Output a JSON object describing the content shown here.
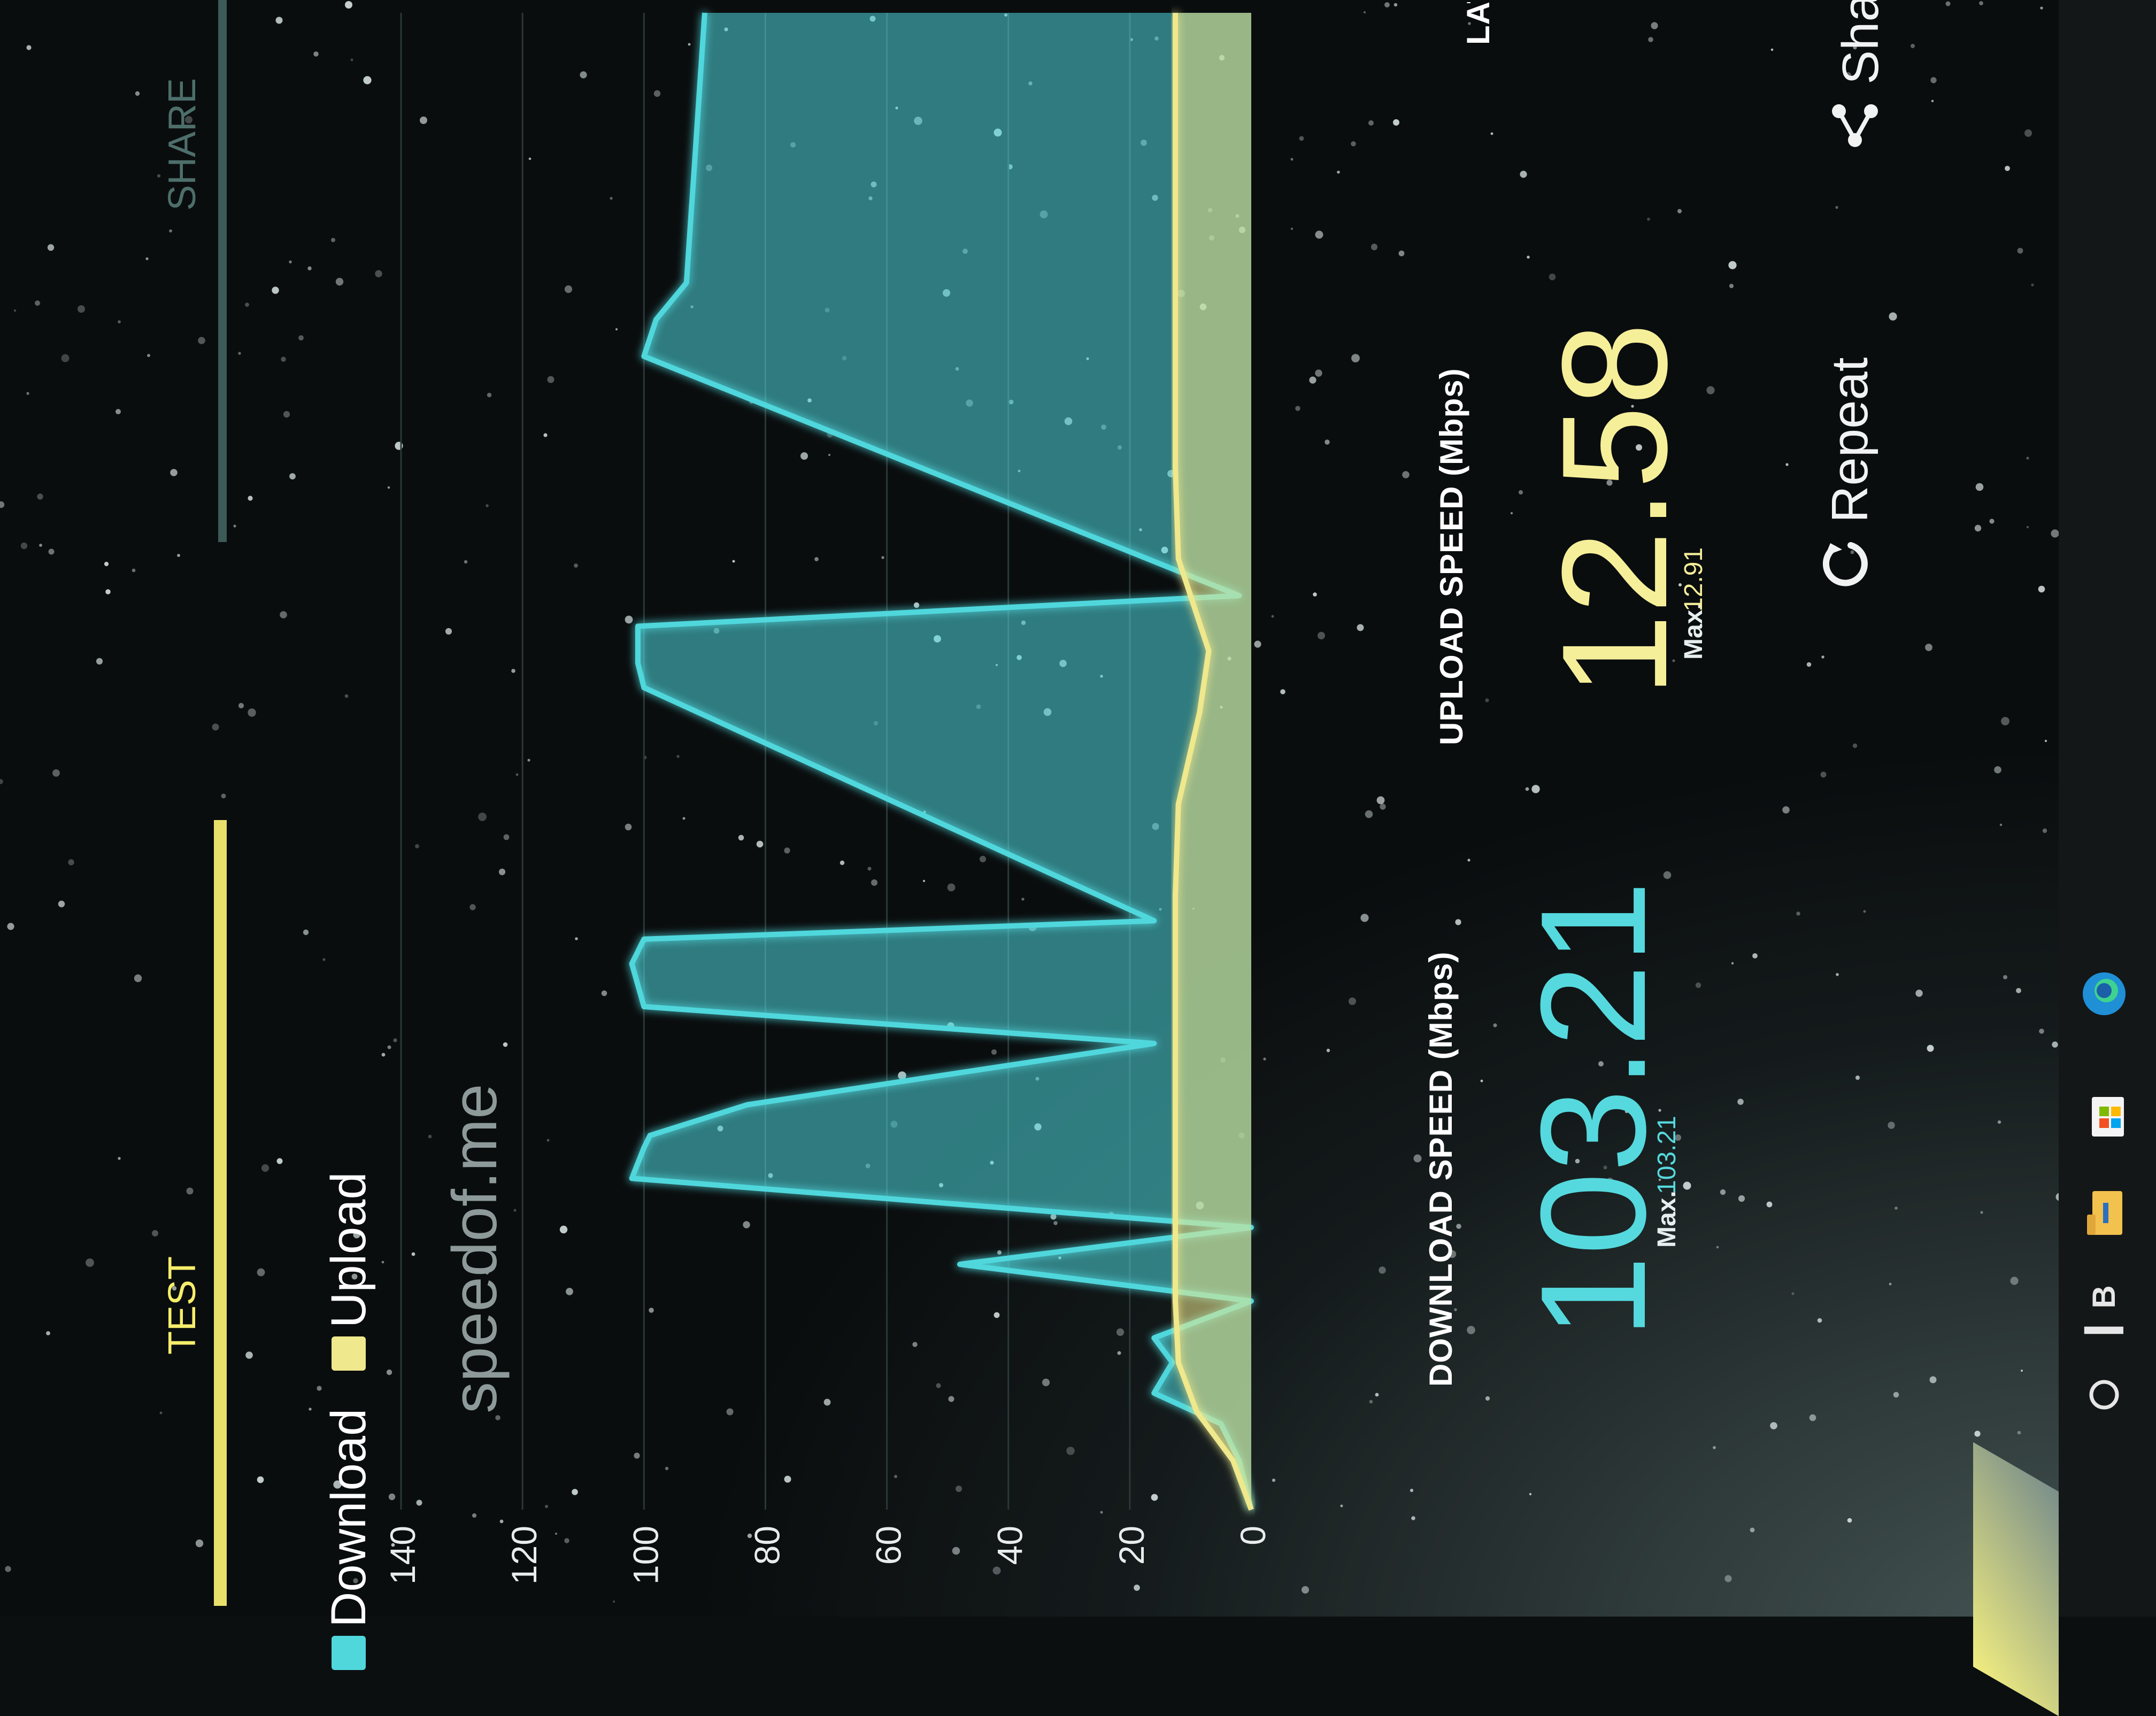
{
  "tabs": [
    {
      "label": "TEST",
      "active": true
    },
    {
      "label": "SHARE",
      "active": false
    }
  ],
  "legend": [
    {
      "label": "Download",
      "color": "#4fd7dc"
    },
    {
      "label": "Upload",
      "color": "#efe88c"
    }
  ],
  "brand": "speedof.me",
  "chart_data": {
    "type": "area",
    "y_axis_label": "Mbps",
    "ylim": [
      0,
      140
    ],
    "yticks": [
      0,
      20,
      40,
      60,
      80,
      100,
      120,
      140
    ],
    "grid": true,
    "series": [
      {
        "name": "Download",
        "color": "#4fd7dc",
        "x": [
          0,
          0.8,
          1.4,
          1.9,
          2.4,
          2.8,
          3.4,
          4.0,
          4.6,
          5.4,
          5.9,
          6.1,
          6.6,
          7.6,
          8.2,
          8.9,
          9.3,
          9.6,
          13.4,
          13.8,
          14.4,
          14.9,
          18.8,
          19.4,
          20.0,
          24.4
        ],
        "values": [
          0,
          2,
          5,
          16,
          13,
          16,
          0,
          48,
          0,
          102,
          100,
          99,
          83,
          16,
          100,
          102,
          100,
          16,
          100,
          101,
          101,
          2,
          100,
          98,
          93,
          90
        ]
      },
      {
        "name": "Upload",
        "color": "#efe88c",
        "x": [
          0,
          0.8,
          1.6,
          2.4,
          3.4,
          5.0,
          7.0,
          10.0,
          11.5,
          13.0,
          14.0,
          15.5,
          17.0,
          19.5,
          24.4
        ],
        "values": [
          0,
          3,
          9,
          12,
          12.5,
          12.5,
          12.5,
          12.5,
          12,
          8.5,
          7,
          12,
          12.5,
          12.5,
          12.5
        ]
      }
    ]
  },
  "results": {
    "download": {
      "label": "DOWNLOAD SPEED (Mbps)",
      "value": "103.21",
      "max_label": "Max.",
      "max_value": "103.21"
    },
    "upload": {
      "label": "UPLOAD SPEED (Mbps)",
      "value": "12.58",
      "max_label": "Max.",
      "max_value": "12.91"
    },
    "latency": {
      "label": "LATE"
    }
  },
  "actions": {
    "repeat": {
      "label": "Repeat",
      "icon": "refresh-icon"
    },
    "share": {
      "label": "Share",
      "icon": "share-icon"
    }
  },
  "taskbar": {
    "taskview_label": "▎B",
    "items": [
      "search-icon",
      "task-view-icon",
      "file-explorer-icon",
      "store-icon",
      "edge-icon"
    ]
  }
}
